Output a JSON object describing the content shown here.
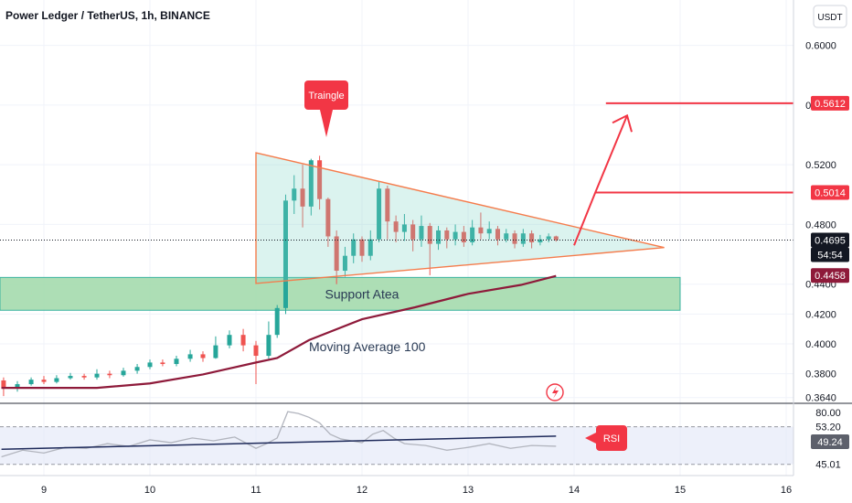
{
  "header": {
    "title": "Power Ledger / TetherUS, 1h, BINANCE",
    "currency_button": "USDT"
  },
  "colors": {
    "up": "#26a69a",
    "down": "#ef5350",
    "annotation": "#f23645",
    "triangle": "#f57c4c",
    "ma": "#8e1a3a",
    "support_fill": "#9fd8a8",
    "rsi_line": "#b2b5be",
    "rsi_trend": "#1e2a5a"
  },
  "chart_data": [
    {
      "type": "candlestick",
      "symbol": "Power Ledger / TetherUS",
      "interval": "1h",
      "exchange": "BINANCE",
      "x_tick_labels": [
        "9",
        "10",
        "11",
        "12",
        "13",
        "14",
        "15",
        "16"
      ],
      "y_tick_labels": [
        "0.6000",
        "0.5600",
        "0.5200",
        "0.4800",
        "0.4400",
        "0.4200",
        "0.4000",
        "0.3800",
        "0.3640"
      ],
      "ylim": [
        0.362,
        0.612
      ],
      "price_labels": [
        {
          "value": "0.5612",
          "kind": "target"
        },
        {
          "value": "0.5014",
          "kind": "target"
        },
        {
          "value": "0.4695",
          "kind": "last"
        },
        {
          "value": "54:54",
          "kind": "countdown"
        },
        {
          "value": "0.4458",
          "kind": "support"
        }
      ],
      "annotations": {
        "triangle_label": "Traingle",
        "support_label": "Support Atea",
        "ma_label": "Moving Average 100"
      },
      "support_zone": [
        0.4225,
        0.4445
      ],
      "targets": [
        0.5612,
        0.5014
      ],
      "moving_average_100": [
        [
          8.6,
          0.3705
        ],
        [
          9.5,
          0.3705
        ],
        [
          10.0,
          0.3735
        ],
        [
          10.5,
          0.3795
        ],
        [
          11.0,
          0.3875
        ],
        [
          11.2,
          0.3905
        ],
        [
          11.5,
          0.4025
        ],
        [
          12.0,
          0.4165
        ],
        [
          12.5,
          0.4245
        ],
        [
          13.0,
          0.4335
        ],
        [
          13.5,
          0.4395
        ],
        [
          13.83,
          0.4455
        ]
      ],
      "triangle": {
        "top_left": [
          11.0,
          0.528
        ],
        "bottom_left": [
          11.0,
          0.4405
        ],
        "apex": [
          14.85,
          0.4645
        ]
      },
      "projection_arrow": [
        [
          14.0,
          0.466
        ],
        [
          14.2,
          0.5014
        ],
        [
          14.5,
          0.553
        ]
      ],
      "candles": [
        [
          8.62,
          0.3755,
          0.37,
          0.3775,
          0.365
        ],
        [
          8.75,
          0.37,
          0.373,
          0.375,
          0.368
        ],
        [
          8.88,
          0.373,
          0.376,
          0.3775,
          0.372
        ],
        [
          9.0,
          0.376,
          0.3745,
          0.3785,
          0.373
        ],
        [
          9.12,
          0.3745,
          0.377,
          0.379,
          0.3735
        ],
        [
          9.25,
          0.377,
          0.3785,
          0.3805,
          0.376
        ],
        [
          9.38,
          0.3785,
          0.3775,
          0.38,
          0.376
        ],
        [
          9.5,
          0.3775,
          0.38,
          0.383,
          0.376
        ],
        [
          9.62,
          0.38,
          0.379,
          0.382,
          0.377
        ],
        [
          9.75,
          0.379,
          0.382,
          0.384,
          0.378
        ],
        [
          9.88,
          0.382,
          0.3845,
          0.3865,
          0.38
        ],
        [
          10.0,
          0.3845,
          0.3875,
          0.3895,
          0.383
        ],
        [
          10.12,
          0.3875,
          0.3865,
          0.3895,
          0.385
        ],
        [
          10.25,
          0.3865,
          0.39,
          0.392,
          0.385
        ],
        [
          10.38,
          0.39,
          0.393,
          0.396,
          0.388
        ],
        [
          10.5,
          0.393,
          0.3905,
          0.395,
          0.388
        ],
        [
          10.62,
          0.3905,
          0.399,
          0.405,
          0.39
        ],
        [
          10.75,
          0.399,
          0.406,
          0.409,
          0.397
        ],
        [
          10.88,
          0.406,
          0.399,
          0.41,
          0.395
        ],
        [
          11.0,
          0.399,
          0.392,
          0.402,
          0.373
        ],
        [
          11.12,
          0.392,
          0.406,
          0.415,
          0.39
        ],
        [
          11.2,
          0.406,
          0.424,
          0.426,
          0.404
        ],
        [
          11.28,
          0.424,
          0.496,
          0.5,
          0.42
        ],
        [
          11.36,
          0.496,
          0.504,
          0.513,
          0.487
        ],
        [
          11.44,
          0.504,
          0.492,
          0.52,
          0.478
        ],
        [
          11.52,
          0.492,
          0.523,
          0.524,
          0.486
        ],
        [
          11.6,
          0.523,
          0.497,
          0.526,
          0.49
        ],
        [
          11.68,
          0.497,
          0.472,
          0.498,
          0.465
        ],
        [
          11.76,
          0.472,
          0.449,
          0.476,
          0.44
        ],
        [
          11.84,
          0.449,
          0.459,
          0.465,
          0.445
        ],
        [
          11.92,
          0.459,
          0.47,
          0.474,
          0.454
        ],
        [
          12.0,
          0.47,
          0.459,
          0.472,
          0.455
        ],
        [
          12.08,
          0.459,
          0.47,
          0.476,
          0.456
        ],
        [
          12.16,
          0.47,
          0.504,
          0.509,
          0.468
        ],
        [
          12.24,
          0.504,
          0.482,
          0.506,
          0.47
        ],
        [
          12.32,
          0.482,
          0.475,
          0.486,
          0.468
        ],
        [
          12.4,
          0.475,
          0.48,
          0.487,
          0.469
        ],
        [
          12.48,
          0.48,
          0.47,
          0.483,
          0.462
        ],
        [
          12.56,
          0.47,
          0.479,
          0.486,
          0.465
        ],
        [
          12.64,
          0.479,
          0.467,
          0.481,
          0.446
        ],
        [
          12.72,
          0.467,
          0.476,
          0.479,
          0.463
        ],
        [
          12.8,
          0.476,
          0.47,
          0.478,
          0.464
        ],
        [
          12.88,
          0.47,
          0.475,
          0.48,
          0.466
        ],
        [
          12.96,
          0.475,
          0.468,
          0.479,
          0.465
        ],
        [
          13.04,
          0.468,
          0.478,
          0.483,
          0.466
        ],
        [
          13.12,
          0.478,
          0.474,
          0.488,
          0.47
        ],
        [
          13.2,
          0.474,
          0.477,
          0.482,
          0.47
        ],
        [
          13.28,
          0.477,
          0.47,
          0.479,
          0.466
        ],
        [
          13.36,
          0.47,
          0.474,
          0.477,
          0.468
        ],
        [
          13.44,
          0.474,
          0.467,
          0.476,
          0.464
        ],
        [
          13.52,
          0.467,
          0.474,
          0.477,
          0.465
        ],
        [
          13.6,
          0.474,
          0.468,
          0.476,
          0.464
        ],
        [
          13.68,
          0.468,
          0.47,
          0.473,
          0.466
        ],
        [
          13.76,
          0.47,
          0.472,
          0.474,
          0.468
        ],
        [
          13.83,
          0.472,
          0.4695,
          0.4725,
          0.4685
        ]
      ]
    },
    {
      "type": "line",
      "name": "RSI",
      "y_tick_labels": [
        "80.00",
        "53.20",
        "49.24",
        "45.01"
      ],
      "badge": "RSI",
      "ylim": [
        20,
        90
      ],
      "bands": [
        70,
        30
      ],
      "x": [
        8.6,
        8.8,
        9.0,
        9.2,
        9.4,
        9.6,
        9.8,
        10.0,
        10.2,
        10.4,
        10.6,
        10.8,
        11.0,
        11.1,
        11.2,
        11.3,
        11.4,
        11.5,
        11.6,
        11.7,
        11.8,
        12.0,
        12.1,
        12.2,
        12.3,
        12.4,
        12.6,
        12.8,
        13.0,
        13.2,
        13.4,
        13.6,
        13.83
      ],
      "values": [
        38,
        45,
        42,
        48,
        47,
        52,
        49,
        56,
        53,
        58,
        55,
        59,
        47,
        52,
        58,
        86,
        84,
        80,
        74,
        62,
        57,
        53,
        62,
        66,
        58,
        52,
        50,
        45,
        48,
        52,
        47,
        50,
        49.24
      ],
      "trendline": [
        [
          8.6,
          46
        ],
        [
          13.83,
          60
        ]
      ]
    }
  ]
}
